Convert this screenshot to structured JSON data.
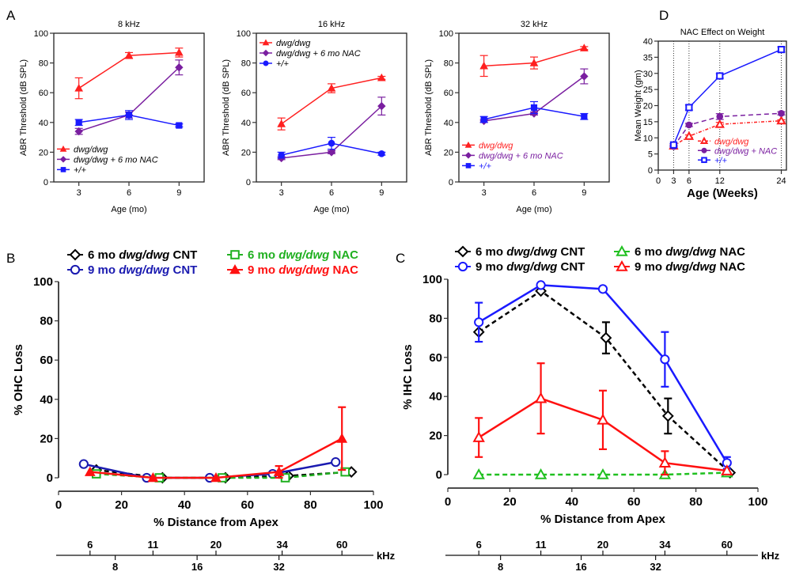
{
  "panels": {
    "A": "A",
    "B": "B",
    "C": "C",
    "D": "D"
  },
  "chart_data": [
    {
      "id": "A1",
      "type": "line",
      "title": "8 kHz",
      "xlabel": "Age (mo)",
      "ylabel": "ABR Threshold (dB SPL)",
      "x": [
        3,
        6,
        9
      ],
      "xticks": [
        "3",
        "6",
        "9"
      ],
      "yticks": [
        "0",
        "20",
        "40",
        "60",
        "80",
        "100"
      ],
      "ylim": [
        0,
        100
      ],
      "legend_position": "bottom-left",
      "series": [
        {
          "name": "dwg/dwg",
          "color": "#ff2020",
          "marker": "triangle",
          "values": [
            63,
            85,
            87
          ],
          "err": [
            7,
            2,
            3
          ]
        },
        {
          "name": "dwg/dwg + 6 mo NAC",
          "color": "#7a1fa0",
          "marker": "diamond",
          "values": [
            34,
            45,
            77
          ],
          "err": [
            2,
            2,
            5
          ]
        },
        {
          "name": "+/+",
          "color": "#1a1aff",
          "marker": "square",
          "values": [
            40,
            45,
            38
          ],
          "err": [
            2,
            3,
            1
          ]
        }
      ]
    },
    {
      "id": "A2",
      "type": "line",
      "title": "16 kHz",
      "xlabel": "Age (mo)",
      "ylabel": "ABR Threshold (dB SPL)",
      "x": [
        3,
        6,
        9
      ],
      "xticks": [
        "3",
        "6",
        "9"
      ],
      "yticks": [
        "0",
        "20",
        "40",
        "60",
        "80",
        "100"
      ],
      "ylim": [
        0,
        100
      ],
      "legend_position": "top-left",
      "series": [
        {
          "name": "dwg/dwg",
          "color": "#ff2020",
          "marker": "triangle",
          "values": [
            39,
            63,
            70
          ],
          "err": [
            4,
            3,
            1
          ]
        },
        {
          "name": "dwg/dwg + 6 mo NAC",
          "color": "#7a1fa0",
          "marker": "diamond",
          "values": [
            16,
            20,
            51
          ],
          "err": [
            1,
            1,
            6
          ]
        },
        {
          "name": "+/+",
          "color": "#1a1aff",
          "marker": "circle",
          "values": [
            18,
            26,
            19
          ],
          "err": [
            2,
            4,
            1
          ]
        }
      ]
    },
    {
      "id": "A3",
      "type": "line",
      "title": "32 kHz",
      "xlabel": "Age (mo)",
      "ylabel": "ABR Threshold (dB SPL)",
      "x": [
        3,
        6,
        9
      ],
      "xticks": [
        "3",
        "6",
        "9"
      ],
      "yticks": [
        "0",
        "20",
        "40",
        "60",
        "80",
        "100"
      ],
      "ylim": [
        0,
        100
      ],
      "legend_position": "bottom-left",
      "series": [
        {
          "name": "dwg/dwg",
          "color": "#ff2020",
          "marker": "triangle",
          "values": [
            78,
            80,
            90
          ],
          "err": [
            7,
            4,
            1
          ]
        },
        {
          "name": "dwg/dwg + 6 mo NAC",
          "color": "#7a1fa0",
          "marker": "diamond",
          "values": [
            41,
            46,
            71
          ],
          "err": [
            1,
            1,
            5
          ]
        },
        {
          "name": "+/+",
          "color": "#1a1aff",
          "marker": "square",
          "values": [
            42,
            50,
            44
          ],
          "err": [
            2,
            4,
            2
          ]
        }
      ]
    },
    {
      "id": "D",
      "type": "line",
      "title": "NAC Effect on Weight",
      "xlabel": "Age (Weeks)",
      "ylabel": "Mean Weight (gm)",
      "x": [
        3,
        6,
        12,
        24
      ],
      "xticks": [
        "0",
        "3",
        "6",
        "12",
        "24"
      ],
      "xtick_values": [
        0,
        3,
        6,
        12,
        24
      ],
      "xlim": [
        0,
        25
      ],
      "yticks": [
        "0",
        "5",
        "10",
        "15",
        "20",
        "25",
        "30",
        "35",
        "40"
      ],
      "ylim": [
        0,
        40
      ],
      "legend_position": "bottom-right",
      "series": [
        {
          "name": "dwg/dwg",
          "color": "#ff2020",
          "marker": "triangle-open",
          "dash": "dashdot",
          "values": [
            7.5,
            10.5,
            14.2,
            15.3
          ],
          "err": [
            0.3,
            0.4,
            0.6,
            0.3
          ]
        },
        {
          "name": "dwg/dwg + NAC",
          "color": "#7a1fa0",
          "marker": "circle",
          "dash": "dash",
          "values": [
            7.3,
            14,
            16.6,
            17.6
          ],
          "err": [
            0.3,
            0.5,
            0.9,
            0.5
          ]
        },
        {
          "name": "+/+",
          "color": "#1a1aff",
          "marker": "square-open",
          "dash": "solid",
          "values": [
            7.8,
            19.4,
            29.2,
            37.4
          ],
          "err": [
            0.4,
            0.8,
            0.7,
            0.8
          ]
        }
      ]
    },
    {
      "id": "B",
      "type": "line",
      "title": "",
      "xlabel": "% Distance from Apex",
      "ylabel": "% OHC Loss",
      "xticks": [
        "0",
        "20",
        "40",
        "60",
        "80",
        "100"
      ],
      "xlim": [
        0,
        100
      ],
      "yticks": [
        "0",
        "20",
        "40",
        "60",
        "80",
        "100"
      ],
      "ylim": [
        0,
        100
      ],
      "legend_position": "top",
      "series": [
        {
          "name": "6 mo dwg/dwg CNT",
          "color": "#000000",
          "marker": "diamond-open",
          "dash": "dash",
          "x": [
            12,
            33,
            53,
            73,
            93
          ],
          "values": [
            4,
            0,
            0,
            1,
            3
          ],
          "err": [
            0,
            0,
            0,
            0,
            0
          ]
        },
        {
          "name": "9 mo dwg/dwg CNT",
          "color": "#1a1ab0",
          "marker": "circle-open",
          "dash": "solid",
          "x": [
            8,
            28,
            48,
            68,
            88
          ],
          "values": [
            7,
            0,
            0,
            2,
            8
          ],
          "err": [
            0,
            0,
            0,
            0,
            0
          ]
        },
        {
          "name": "6 mo dwg/dwg NAC",
          "color": "#20b020",
          "marker": "square-open",
          "dash": "dash",
          "x": [
            12,
            32,
            52,
            72,
            91
          ],
          "values": [
            2,
            0,
            0,
            0,
            3
          ],
          "err": [
            0,
            0,
            0,
            0,
            0
          ]
        },
        {
          "name": "9 mo dwg/dwg NAC",
          "color": "#ff1010",
          "marker": "triangle",
          "dash": "solid",
          "x": [
            10,
            30,
            50,
            70,
            90
          ],
          "values": [
            3,
            0,
            0,
            3,
            20
          ],
          "err": [
            0,
            0,
            0,
            3,
            16
          ]
        }
      ],
      "freq_axis": {
        "unit": "kHz",
        "top_labels": [
          "6",
          "11",
          "20",
          "34",
          "60"
        ],
        "top_positions": [
          10,
          30,
          50,
          71,
          90
        ],
        "bottom_labels": [
          "8",
          "16",
          "32"
        ],
        "bottom_positions": [
          18,
          44,
          70
        ]
      }
    },
    {
      "id": "C",
      "type": "line",
      "title": "",
      "xlabel": "% Distance from Apex",
      "ylabel": "% IHC Loss",
      "xticks": [
        "0",
        "20",
        "40",
        "60",
        "80",
        "100"
      ],
      "xlim": [
        0,
        100
      ],
      "yticks": [
        "0",
        "20",
        "40",
        "60",
        "80",
        "100"
      ],
      "ylim": [
        0,
        100
      ],
      "legend_position": "top",
      "series": [
        {
          "name": "6 mo dwg/dwg CNT",
          "color": "#000000",
          "marker": "diamond-open",
          "dash": "dash",
          "x": [
            10,
            30,
            51,
            71,
            91
          ],
          "values": [
            73,
            94,
            70,
            30,
            1
          ],
          "err": [
            0,
            0,
            8,
            9,
            0
          ]
        },
        {
          "name": "9 mo dwg/dwg CNT",
          "color": "#1a1aff",
          "marker": "circle-open",
          "dash": "solid",
          "x": [
            10,
            30,
            50,
            70,
            90
          ],
          "values": [
            78,
            97,
            95,
            59,
            6
          ],
          "err": [
            10,
            0,
            0,
            14,
            3
          ]
        },
        {
          "name": "6 mo dwg/dwg NAC",
          "color": "#20c020",
          "marker": "triangle-open",
          "dash": "dash",
          "x": [
            10,
            30,
            50,
            70,
            90
          ],
          "values": [
            0,
            0,
            0,
            0,
            1
          ],
          "err": [
            0,
            0,
            0,
            0,
            0
          ]
        },
        {
          "name": "9 mo dwg/dwg NAC",
          "color": "#ff1010",
          "marker": "triangle-open",
          "dash": "solid",
          "x": [
            10,
            30,
            50,
            70,
            90
          ],
          "values": [
            19,
            39,
            28,
            6,
            2
          ],
          "err": [
            10,
            18,
            15,
            6,
            0
          ]
        }
      ],
      "freq_axis": {
        "unit": "kHz",
        "top_labels": [
          "6",
          "11",
          "20",
          "34",
          "60"
        ],
        "top_positions": [
          10,
          30,
          50,
          70,
          90
        ],
        "bottom_labels": [
          "8",
          "16",
          "32"
        ],
        "bottom_positions": [
          17,
          43,
          67
        ]
      }
    }
  ]
}
